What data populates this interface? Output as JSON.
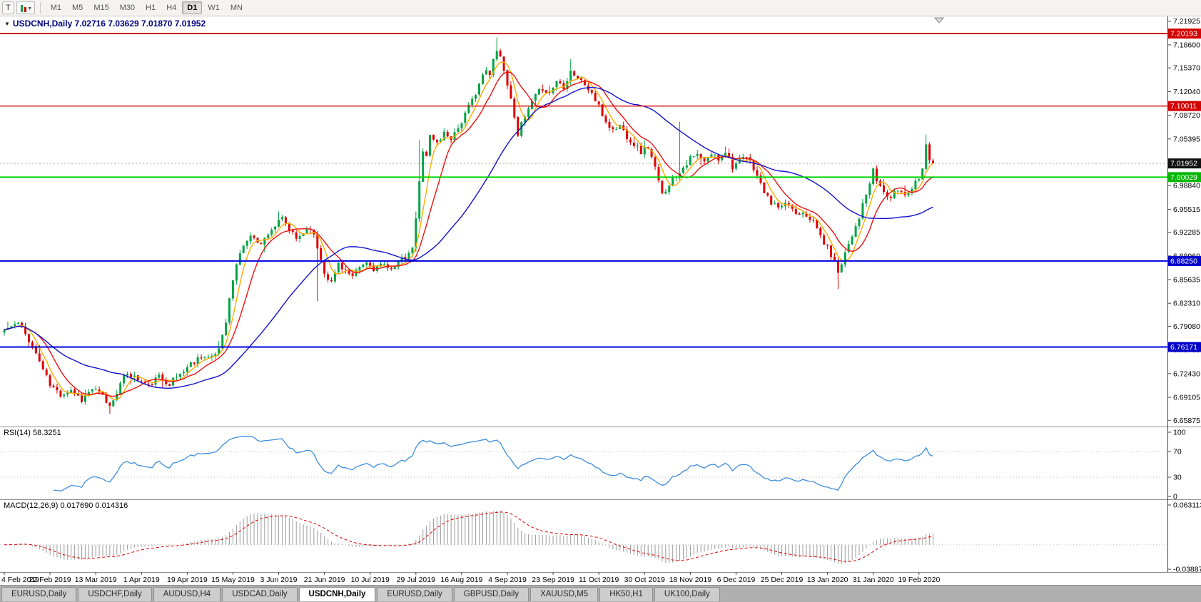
{
  "toolbar": {
    "tool_button": "T",
    "timeframes": [
      "M1",
      "M5",
      "M15",
      "M30",
      "H1",
      "H4",
      "D1",
      "W1",
      "MN"
    ],
    "active_timeframe": "D1"
  },
  "chart": {
    "header_text": "USDCNH,Daily 7.02716 7.03629 7.01870 7.01952",
    "symbol": "USDCNH,Daily",
    "open": "7.02716",
    "high": "7.03629",
    "low": "7.01870",
    "close": "7.01952"
  },
  "main_pane": {
    "price_labels": [
      {
        "p": 7.21925,
        "t": "7.21925"
      },
      {
        "p": 7.186,
        "t": "7.18600"
      },
      {
        "p": 7.1537,
        "t": "7.15370"
      },
      {
        "p": 7.1204,
        "t": "7.12040"
      },
      {
        "p": 7.0872,
        "t": "7.08720"
      },
      {
        "p": 7.05395,
        "t": "7.05395"
      },
      {
        "p": 6.9884,
        "t": "6.98840"
      },
      {
        "p": 6.95515,
        "t": "6.95515"
      },
      {
        "p": 6.92285,
        "t": "6.92285"
      },
      {
        "p": 6.8896,
        "t": "6.88960"
      },
      {
        "p": 6.85635,
        "t": "6.85635"
      },
      {
        "p": 6.8231,
        "t": "6.82310"
      },
      {
        "p": 6.7908,
        "t": "6.79080"
      },
      {
        "p": 6.75755,
        "t": "6.75755"
      },
      {
        "p": 6.7243,
        "t": "6.72430"
      },
      {
        "p": 6.69105,
        "t": "6.69105"
      },
      {
        "p": 6.65875,
        "t": "6.65875"
      }
    ],
    "levels": [
      {
        "price": 7.20193,
        "label": "7.20193",
        "color": "#d40000",
        "width": 2,
        "dash": null,
        "badge_bg": "#d40000",
        "badge_fg": "#ffffff",
        "name": "resistance-line-7-20193"
      },
      {
        "price": 7.10011,
        "label": "7.10011",
        "color": "#d40000",
        "width": 1.4,
        "dash": null,
        "badge_bg": "#d40000",
        "badge_fg": "#ffffff",
        "name": "resistance-line-7-10011"
      },
      {
        "price": 7.01952,
        "label": "7.01952",
        "color": "#aaaaaa",
        "width": 1,
        "dash": "2,3",
        "badge_bg": "#111111",
        "badge_fg": "#ffffff",
        "name": "current-price-line"
      },
      {
        "price": 7.00029,
        "label": "7.00029",
        "color": "#00d400",
        "width": 2,
        "dash": null,
        "badge_bg": "#00b800",
        "badge_fg": "#ffffff",
        "name": "support-line-7-00029"
      },
      {
        "price": 6.8825,
        "label": "6.88250",
        "color": "#0000dd",
        "width": 2,
        "dash": null,
        "badge_bg": "#0000cc",
        "badge_fg": "#ffffff",
        "name": "support-line-6-88250"
      },
      {
        "price": 6.76171,
        "label": "6.76171",
        "color": "#0000dd",
        "width": 2,
        "dash": null,
        "badge_bg": "#0000cc",
        "badge_fg": "#ffffff",
        "name": "support-line-6-76171"
      }
    ]
  },
  "rsi": {
    "label": "RSI(14) 58.3251",
    "period": 14,
    "color": "#3c8ddc",
    "axis": [
      {
        "v": 100,
        "t": "100"
      },
      {
        "v": 70,
        "t": "70"
      },
      {
        "v": 30,
        "t": "30"
      },
      {
        "v": 0,
        "t": "0"
      }
    ],
    "gridlines": [
      70,
      30
    ]
  },
  "macd": {
    "label": "MACD(12,26,9) 0.017690 0.014316",
    "fast": 12,
    "slow": 26,
    "signal": 9,
    "histogram_color": "#9a9a9a",
    "signal_color": "#dd0000",
    "axis": [
      {
        "v": 0.063113,
        "t": "0.063113"
      },
      {
        "v": -0.038872,
        "t": "-0.038872"
      }
    ]
  },
  "dates": [
    "4 Feb 2019",
    "22 Feb 2019",
    "13 Mar 2019",
    "1 Apr 2019",
    "19 Apr 2019",
    "15 May 2019",
    "3 Jun 2019",
    "21 Jun 2019",
    "10 Jul 2019",
    "29 Jul 2019",
    "16 Aug 2019",
    "4 Sep 2019",
    "23 Sep 2019",
    "11 Oct 2019",
    "30 Oct 2019",
    "18 Nov 2019",
    "6 Dec 2019",
    "25 Dec 2019",
    "13 Jan 2020",
    "31 Jan 2020",
    "19 Feb 2020"
  ],
  "tabs": [
    {
      "label": "EURUSD,Daily",
      "active": false
    },
    {
      "label": "USDCHF,Daily",
      "active": false
    },
    {
      "label": "AUDUSD,H4",
      "active": false
    },
    {
      "label": "USDCAD,Daily",
      "active": false
    },
    {
      "label": "USDCNH,Daily",
      "active": true
    },
    {
      "label": "EURUSD,Daily",
      "active": false
    },
    {
      "label": "GBPUSD,Daily",
      "active": false
    },
    {
      "label": "XAUUSD,M5",
      "active": false
    },
    {
      "label": "HK50,H1",
      "active": false
    },
    {
      "label": "UK100,Daily",
      "active": false
    }
  ],
  "chart_data": {
    "type": "candlestick",
    "symbol": "USDCNH",
    "timeframe": "Daily",
    "candles": 265,
    "last_close": 7.01952,
    "scale_top": 7.225,
    "scale_bottom": 6.65,
    "noise": 0.0045,
    "wick": 0.0055,
    "seed": 11,
    "up_color": "#00a344",
    "down_color": "#dd0000",
    "moving_averages": [
      {
        "period": 5,
        "color": "#ffaa00"
      },
      {
        "period": 10,
        "color": "#ee1111"
      },
      {
        "period": 34,
        "color": "#1111cc"
      }
    ],
    "price_anchors": [
      [
        0,
        6.786
      ],
      [
        4,
        6.795
      ],
      [
        7,
        6.772
      ],
      [
        10,
        6.742
      ],
      [
        13,
        6.708
      ],
      [
        16,
        6.695
      ],
      [
        19,
        6.702
      ],
      [
        22,
        6.688
      ],
      [
        25,
        6.703
      ],
      [
        28,
        6.692
      ],
      [
        30,
        6.678
      ],
      [
        32,
        6.7
      ],
      [
        35,
        6.726
      ],
      [
        38,
        6.716
      ],
      [
        41,
        6.707
      ],
      [
        44,
        6.72
      ],
      [
        47,
        6.711
      ],
      [
        50,
        6.724
      ],
      [
        53,
        6.738
      ],
      [
        56,
        6.75
      ],
      [
        59,
        6.745
      ],
      [
        61,
        6.76
      ],
      [
        63,
        6.8
      ],
      [
        65,
        6.856
      ],
      [
        67,
        6.895
      ],
      [
        69,
        6.912
      ],
      [
        71,
        6.918
      ],
      [
        73,
        6.905
      ],
      [
        75,
        6.923
      ],
      [
        77,
        6.932
      ],
      [
        79,
        6.941
      ],
      [
        81,
        6.926
      ],
      [
        83,
        6.913
      ],
      [
        85,
        6.923
      ],
      [
        87,
        6.931
      ],
      [
        89,
        6.902
      ],
      [
        91,
        6.868
      ],
      [
        93,
        6.852
      ],
      [
        95,
        6.88
      ],
      [
        97,
        6.869
      ],
      [
        99,
        6.858
      ],
      [
        101,
        6.873
      ],
      [
        103,
        6.88
      ],
      [
        105,
        6.872
      ],
      [
        107,
        6.877
      ],
      [
        109,
        6.871
      ],
      [
        111,
        6.878
      ],
      [
        113,
        6.883
      ],
      [
        115,
        6.89
      ],
      [
        116,
        6.902
      ],
      [
        117,
        6.94
      ],
      [
        118,
        6.993
      ],
      [
        119,
        7.04
      ],
      [
        120,
        7.032
      ],
      [
        121,
        7.058
      ],
      [
        123,
        7.048
      ],
      [
        125,
        7.062
      ],
      [
        127,
        7.056
      ],
      [
        129,
        7.07
      ],
      [
        131,
        7.088
      ],
      [
        133,
        7.108
      ],
      [
        135,
        7.132
      ],
      [
        137,
        7.15
      ],
      [
        138,
        7.142
      ],
      [
        139,
        7.165
      ],
      [
        140,
        7.182
      ],
      [
        141,
        7.17
      ],
      [
        142,
        7.15
      ],
      [
        143,
        7.132
      ],
      [
        144,
        7.108
      ],
      [
        145,
        7.088
      ],
      [
        146,
        7.062
      ],
      [
        147,
        7.073
      ],
      [
        149,
        7.095
      ],
      [
        151,
        7.113
      ],
      [
        153,
        7.126
      ],
      [
        155,
        7.118
      ],
      [
        157,
        7.136
      ],
      [
        159,
        7.128
      ],
      [
        161,
        7.15
      ],
      [
        163,
        7.14
      ],
      [
        165,
        7.13
      ],
      [
        167,
        7.118
      ],
      [
        169,
        7.098
      ],
      [
        171,
        7.078
      ],
      [
        173,
        7.066
      ],
      [
        175,
        7.073
      ],
      [
        177,
        7.058
      ],
      [
        179,
        7.047
      ],
      [
        181,
        7.036
      ],
      [
        183,
        7.043
      ],
      [
        185,
        7.012
      ],
      [
        187,
        6.975
      ],
      [
        189,
        6.992
      ],
      [
        191,
        7.003
      ],
      [
        193,
        7.015
      ],
      [
        195,
        7.026
      ],
      [
        197,
        7.031
      ],
      [
        199,
        7.02
      ],
      [
        201,
        7.033
      ],
      [
        203,
        7.026
      ],
      [
        205,
        7.038
      ],
      [
        207,
        7.016
      ],
      [
        209,
        7.023
      ],
      [
        211,
        7.028
      ],
      [
        213,
        7.014
      ],
      [
        215,
        6.99
      ],
      [
        217,
        6.97
      ],
      [
        219,
        6.96
      ],
      [
        221,
        6.956
      ],
      [
        223,
        6.963
      ],
      [
        225,
        6.949
      ],
      [
        227,
        6.953
      ],
      [
        229,
        6.944
      ],
      [
        231,
        6.928
      ],
      [
        233,
        6.908
      ],
      [
        235,
        6.892
      ],
      [
        237,
        6.868
      ],
      [
        239,
        6.895
      ],
      [
        241,
        6.92
      ],
      [
        243,
        6.945
      ],
      [
        245,
        6.975
      ],
      [
        247,
        7.008
      ],
      [
        248,
        6.996
      ],
      [
        250,
        6.979
      ],
      [
        252,
        6.971
      ],
      [
        254,
        6.983
      ],
      [
        256,
        6.976
      ],
      [
        258,
        6.986
      ],
      [
        260,
        7.002
      ],
      [
        261,
        7.016
      ],
      [
        262,
        7.044
      ],
      [
        263,
        7.027
      ],
      [
        264,
        7.01952
      ]
    ],
    "spikes": [
      {
        "i": 30,
        "low": 6.668
      },
      {
        "i": 89,
        "low": 6.826
      },
      {
        "i": 118,
        "high": 7.052
      },
      {
        "i": 140,
        "high": 7.1965
      },
      {
        "i": 161,
        "high": 7.166
      },
      {
        "i": 192,
        "high": 7.078
      },
      {
        "i": 237,
        "low": 6.843
      },
      {
        "i": 262,
        "high": 7.06
      }
    ]
  }
}
